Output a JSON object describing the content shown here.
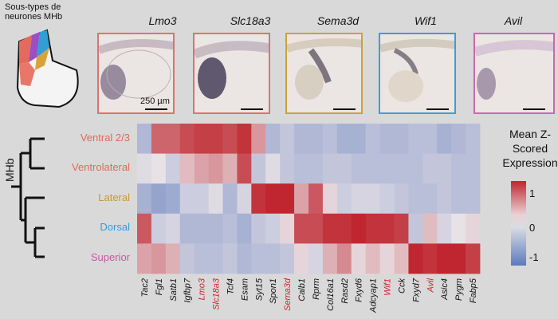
{
  "figure": {
    "title": "Sous-types de neurones MHb",
    "scale_label": "250 µm",
    "mhb_label": "MHb"
  },
  "panels": [
    {
      "gene": "Lmo3",
      "border": "#e07070"
    },
    {
      "gene": "Slc18a3",
      "border": "#e07070"
    },
    {
      "gene": "Sema3d",
      "border": "#c9a23a"
    },
    {
      "gene": "Wif1",
      "border": "#3a9fd6"
    },
    {
      "gene": "Avil",
      "border": "#c66aa8"
    }
  ],
  "rows": [
    {
      "label": "Ventral 2/3",
      "color": "#e06a5a"
    },
    {
      "label": "Ventrolateral",
      "color": "#e06a5a"
    },
    {
      "label": "Lateral",
      "color": "#c99a2e"
    },
    {
      "label": "Dorsal",
      "color": "#2fa0d8"
    },
    {
      "label": "Superior",
      "color": "#c45aa0"
    }
  ],
  "legend": {
    "title": "Mean Z-Scored Expression",
    "ticks": [
      "1",
      "0",
      "-1"
    ]
  },
  "chart_data": {
    "type": "heatmap",
    "columns": [
      "Tac2",
      "Fgl1",
      "Satb1",
      "Igfbp7",
      "Lmo3",
      "Slc18a3",
      "Tcf4",
      "Esam",
      "Syt15",
      "Spon1",
      "Sema3d",
      "Calb1",
      "Rprm",
      "Col16a1",
      "Rasd2",
      "Fxyd6",
      "Adcyap1",
      "Wif1",
      "Cck",
      "Fxyd7",
      "Avil",
      "Asic4",
      "Pygm",
      "Fabp5"
    ],
    "highlighted_columns": [
      "Lmo3",
      "Slc18a3",
      "Sema3d",
      "Wif1",
      "Avil"
    ],
    "highlight_color": "#c8242c",
    "rows": [
      "Ventral 2/3",
      "Ventrolateral",
      "Lateral",
      "Dorsal",
      "Superior"
    ],
    "values": [
      [
        -0.6,
        1.0,
        1.0,
        1.2,
        1.3,
        1.3,
        1.2,
        1.4,
        0.6,
        -0.6,
        -0.4,
        -0.6,
        -0.6,
        -0.5,
        -0.7,
        -0.7,
        -0.5,
        -0.6,
        -0.6,
        -0.5,
        -0.5,
        -0.7,
        -0.6,
        -0.5
      ],
      [
        -0.1,
        0.0,
        -0.3,
        0.3,
        0.5,
        0.6,
        0.4,
        1.2,
        -0.4,
        -0.1,
        -0.4,
        -0.5,
        -0.5,
        -0.4,
        -0.4,
        -0.5,
        -0.5,
        -0.5,
        -0.5,
        -0.5,
        -0.4,
        -0.4,
        -0.5,
        -0.5
      ],
      [
        -0.7,
        -0.9,
        -0.8,
        -0.3,
        -0.3,
        -0.1,
        -0.6,
        -0.2,
        1.4,
        1.5,
        1.5,
        0.5,
        1.1,
        0.1,
        -0.3,
        -0.2,
        -0.2,
        -0.3,
        -0.4,
        -0.5,
        -0.5,
        -0.4,
        -0.5,
        -0.5
      ],
      [
        1.1,
        -0.3,
        -0.2,
        -0.6,
        -0.6,
        -0.6,
        -0.5,
        -0.7,
        -0.4,
        -0.3,
        0.1,
        1.2,
        1.2,
        1.4,
        1.4,
        1.5,
        1.4,
        1.4,
        1.3,
        -0.4,
        0.3,
        -0.2,
        0.0,
        0.1
      ],
      [
        0.5,
        0.6,
        0.4,
        -0.4,
        -0.5,
        -0.5,
        -0.4,
        -0.6,
        -0.5,
        -0.5,
        -0.4,
        0.1,
        -0.2,
        0.4,
        0.7,
        0.1,
        0.3,
        0.1,
        0.3,
        1.5,
        1.4,
        1.6,
        1.5,
        1.3
      ]
    ],
    "color_range": [
      -1.5,
      1.5
    ]
  }
}
